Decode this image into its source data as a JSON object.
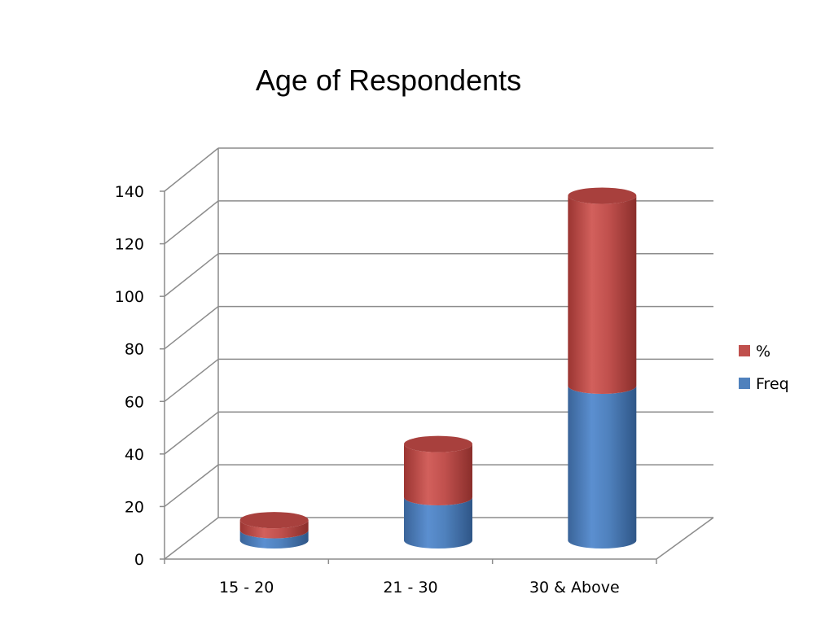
{
  "chart_data": {
    "type": "bar",
    "stacked": true,
    "style": "3d-cylinder",
    "title": "Age of Respondents",
    "categories": [
      "15 - 20",
      "21 - 30",
      "30 & Above"
    ],
    "series": [
      {
        "name": "Freq",
        "color": "#4F81BD",
        "values": [
          4,
          17,
          61
        ]
      },
      {
        "name": "%",
        "color": "#C0504D",
        "values": [
          4,
          21,
          75
        ]
      }
    ],
    "ylim": [
      0,
      140
    ],
    "yticks": [
      "0",
      "20",
      "40",
      "60",
      "80",
      "100",
      "120",
      "140"
    ],
    "grid": true,
    "legend_position": "right"
  }
}
